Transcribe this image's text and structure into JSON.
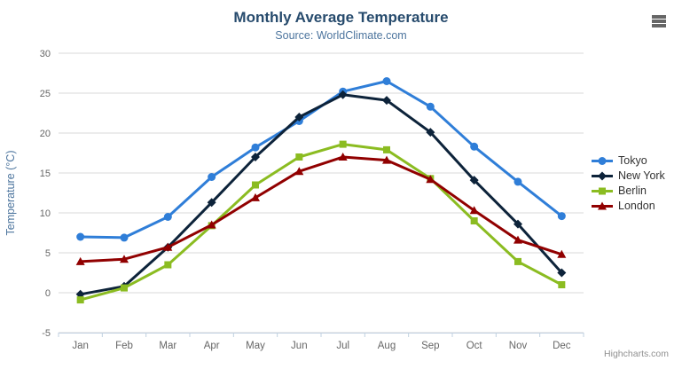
{
  "header": {
    "title": "Monthly Average Temperature",
    "subtitle": "Source: WorldClimate.com"
  },
  "context_menu": {
    "icon": "hamburger-icon"
  },
  "credit": {
    "label": "Highcharts.com"
  },
  "colors": {
    "title": "#274b6d",
    "subtitle": "#4d759e",
    "axis_label": "#666666",
    "axis_title": "#4d759e",
    "grid_line": "#d8d8d8",
    "axis_line": "#c0d0e0",
    "legend_text": "#333333",
    "menu_icon": "#666666",
    "credit_text": "#909090"
  },
  "chart_data": {
    "type": "line",
    "title": "Monthly Average Temperature",
    "subtitle": "Source: WorldClimate.com",
    "categories": [
      "Jan",
      "Feb",
      "Mar",
      "Apr",
      "May",
      "Jun",
      "Jul",
      "Aug",
      "Sep",
      "Oct",
      "Nov",
      "Dec"
    ],
    "series": [
      {
        "name": "Tokyo",
        "color": "#2f7ed8",
        "marker": "circle",
        "values": [
          7.0,
          6.9,
          9.5,
          14.5,
          18.2,
          21.5,
          25.2,
          26.5,
          23.3,
          18.3,
          13.9,
          9.6
        ]
      },
      {
        "name": "New York",
        "color": "#0d233a",
        "marker": "diamond",
        "values": [
          -0.2,
          0.8,
          5.7,
          11.3,
          17.0,
          22.0,
          24.8,
          24.1,
          20.1,
          14.1,
          8.6,
          2.5
        ]
      },
      {
        "name": "Berlin",
        "color": "#8bbc21",
        "marker": "square",
        "values": [
          -0.9,
          0.6,
          3.5,
          8.4,
          13.5,
          17.0,
          18.6,
          17.9,
          14.3,
          9.0,
          3.9,
          1.0
        ]
      },
      {
        "name": "London",
        "color": "#910000",
        "marker": "triangle",
        "values": [
          3.9,
          4.2,
          5.7,
          8.5,
          11.9,
          15.2,
          17.0,
          16.6,
          14.2,
          10.3,
          6.6,
          4.8
        ]
      }
    ],
    "xlabel": "",
    "ylabel": "Temperature (°C)",
    "ylim": [
      -5,
      30
    ],
    "yticks": [
      -5,
      0,
      5,
      10,
      15,
      20,
      25,
      30
    ],
    "grid": true,
    "legend_position": "right"
  }
}
